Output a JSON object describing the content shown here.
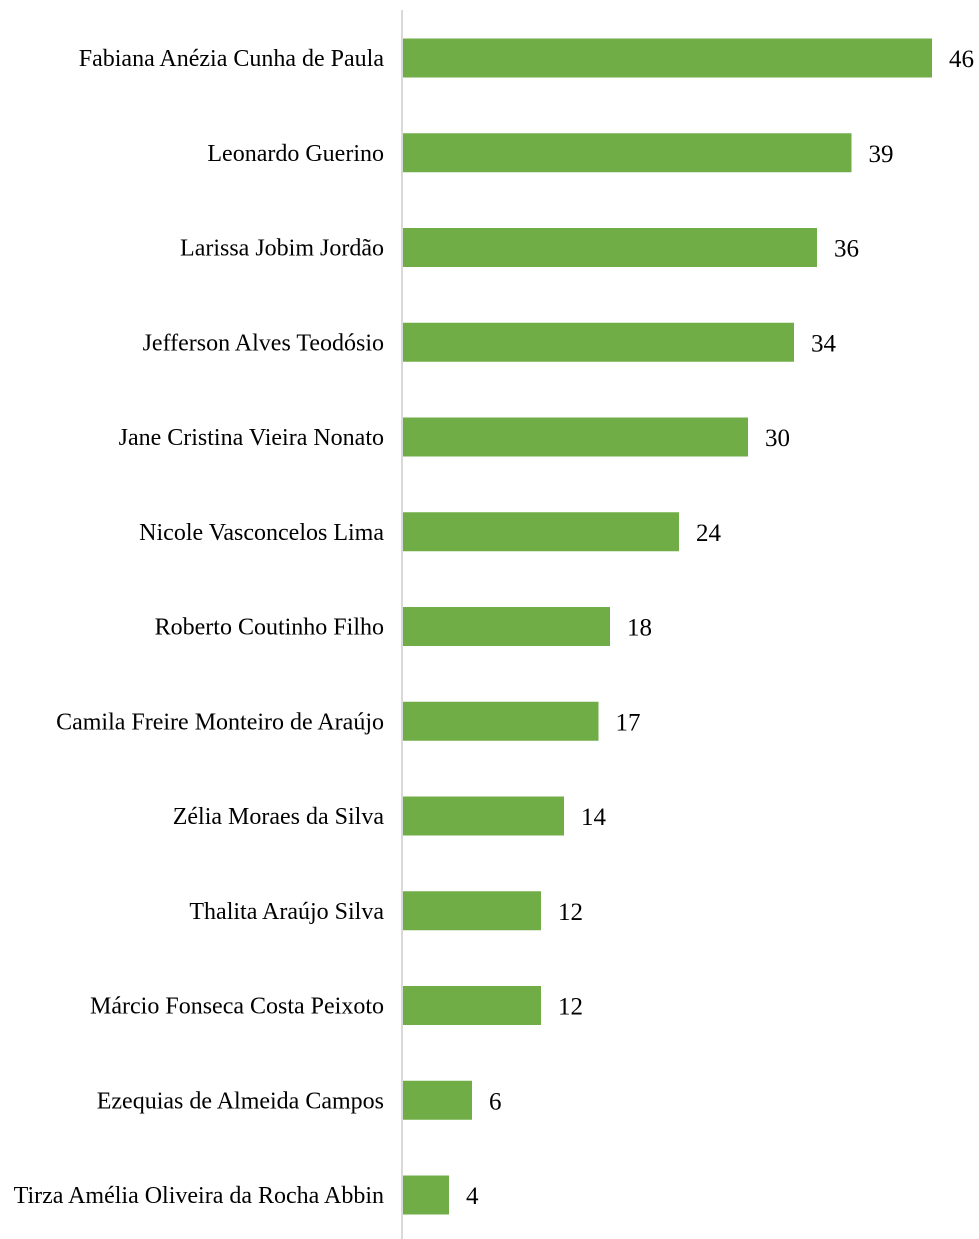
{
  "chart_data": {
    "type": "bar",
    "orientation": "horizontal",
    "title": "",
    "xlabel": "",
    "ylabel": "",
    "categories": [
      "Fabiana Anézia Cunha de Paula",
      "Leonardo Guerino",
      "Larissa Jobim Jordão",
      "Jefferson Alves Teodósio",
      "Jane Cristina Vieira Nonato",
      "Nicole Vasconcelos Lima",
      "Roberto Coutinho Filho",
      "Camila Freire Monteiro de Araújo",
      "Zélia Moraes da Silva",
      "Thalita Araújo Silva",
      "Márcio Fonseca Costa Peixoto",
      "Ezequias de Almeida Campos",
      "Tirza Amélia Oliveira da Rocha Abbin"
    ],
    "values": [
      46,
      39,
      36,
      34,
      30,
      24,
      18,
      17,
      14,
      12,
      12,
      6,
      4
    ],
    "data_labels": [
      "46",
      "39",
      "36",
      "34",
      "30",
      "24",
      "18",
      "17",
      "14",
      "12",
      "12",
      "6",
      "4"
    ],
    "xlim": [
      0,
      46
    ],
    "grid": false,
    "legend": "none",
    "bar_color": "#70AD47",
    "axis_color": "#D9D9D9"
  }
}
